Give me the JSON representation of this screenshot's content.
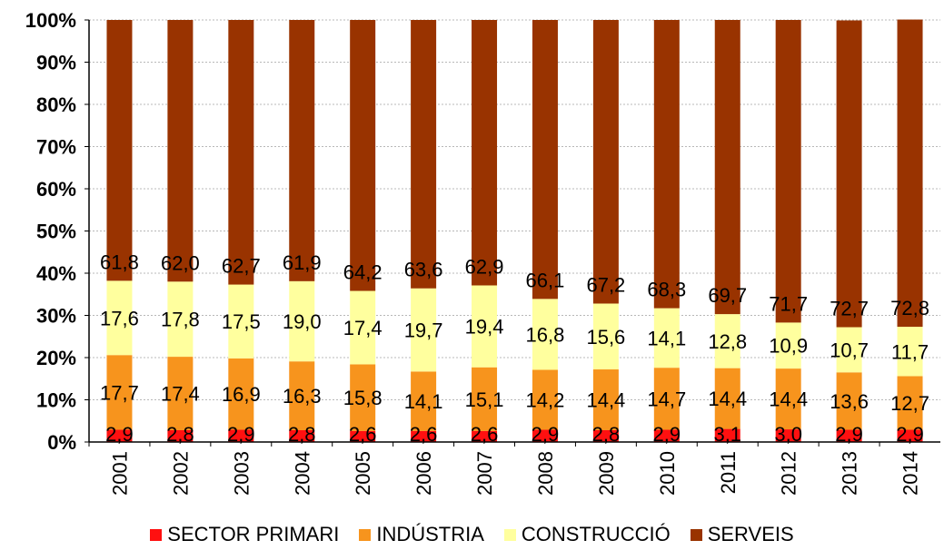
{
  "chart_data": {
    "type": "bar",
    "stacked": true,
    "normalized": true,
    "categories": [
      "2001",
      "2002",
      "2003",
      "2004",
      "2005",
      "2006",
      "2007",
      "2008",
      "2009",
      "2010",
      "2011",
      "2012",
      "2013",
      "2014"
    ],
    "series": [
      {
        "name": "SECTOR PRIMARI",
        "color": "#ff1010",
        "values": [
          2.9,
          2.8,
          2.9,
          2.8,
          2.6,
          2.6,
          2.6,
          2.9,
          2.8,
          2.9,
          3.1,
          3.0,
          2.9,
          2.9
        ],
        "labels": [
          "2,9",
          "2,8",
          "2,9",
          "2,8",
          "2,6",
          "2,6",
          "2,6",
          "2,9",
          "2,8",
          "2,9",
          "3,1",
          "3,0",
          "2,9",
          "2,9"
        ]
      },
      {
        "name": "INDÚSTRIA",
        "color": "#f7941d",
        "values": [
          17.7,
          17.4,
          16.9,
          16.3,
          15.8,
          14.1,
          15.1,
          14.2,
          14.4,
          14.7,
          14.4,
          14.4,
          13.6,
          12.7
        ],
        "labels": [
          "17,7",
          "17,4",
          "16,9",
          "16,3",
          "15,8",
          "14,1",
          "15,1",
          "14,2",
          "14,4",
          "14,7",
          "14,4",
          "14,4",
          "13,6",
          "12,7"
        ]
      },
      {
        "name": "CONSTRUCCIÓ",
        "color": "#ffff9e",
        "values": [
          17.6,
          17.8,
          17.5,
          19.0,
          17.4,
          19.7,
          19.4,
          16.8,
          15.6,
          14.1,
          12.8,
          10.9,
          10.7,
          11.7
        ],
        "labels": [
          "17,6",
          "17,8",
          "17,5",
          "19,0",
          "17,4",
          "19,7",
          "19,4",
          "16,8",
          "15,6",
          "14,1",
          "12,8",
          "10,9",
          "10,7",
          "11,7"
        ]
      },
      {
        "name": "SERVEIS",
        "color": "#993300",
        "values": [
          61.8,
          62.0,
          62.7,
          61.9,
          64.2,
          63.6,
          62.9,
          66.1,
          67.2,
          68.3,
          69.7,
          71.7,
          72.7,
          72.8
        ],
        "labels": [
          "61,8",
          "62,0",
          "62,7",
          "61,9",
          "64,2",
          "63,6",
          "62,9",
          "66,1",
          "67,2",
          "68,3",
          "69,7",
          "71,7",
          "72,7",
          "72,8"
        ]
      }
    ],
    "y_ticks": [
      "0%",
      "10%",
      "20%",
      "30%",
      "40%",
      "50%",
      "60%",
      "70%",
      "80%",
      "90%",
      "100%"
    ],
    "ylim": [
      0,
      100
    ],
    "grid": true,
    "legend_position": "bottom"
  }
}
